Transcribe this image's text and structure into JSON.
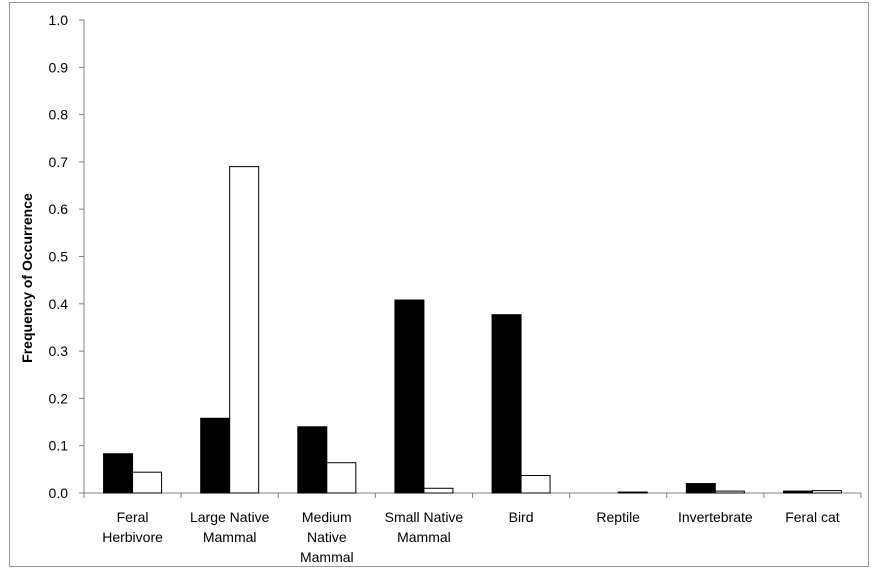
{
  "chart_data": {
    "type": "bar",
    "title": "",
    "xlabel": "",
    "ylabel": "Frequency of Occurrence",
    "ylim": [
      0,
      1.0
    ],
    "yticks": [
      "0.0",
      "0.1",
      "0.2",
      "0.3",
      "0.4",
      "0.5",
      "0.6",
      "0.7",
      "0.8",
      "0.9",
      "1.0"
    ],
    "grid": false,
    "legend": "none",
    "categories": [
      [
        "Feral",
        "Herbivore"
      ],
      [
        "Large Native",
        "Mammal"
      ],
      [
        "Medium",
        "Native",
        "Mammal"
      ],
      [
        "Small Native",
        "Mammal"
      ],
      [
        "Bird"
      ],
      [
        "Reptile"
      ],
      [
        "Invertebrate"
      ],
      [
        "Feral cat"
      ]
    ],
    "series": [
      {
        "fill": "#000000",
        "values": [
          0.083,
          0.158,
          0.14,
          0.408,
          0.377,
          0.0,
          0.02,
          0.004
        ]
      },
      {
        "fill": "#ffffff",
        "values": [
          0.044,
          0.69,
          0.064,
          0.01,
          0.037,
          0.002,
          0.004,
          0.005
        ]
      }
    ]
  }
}
